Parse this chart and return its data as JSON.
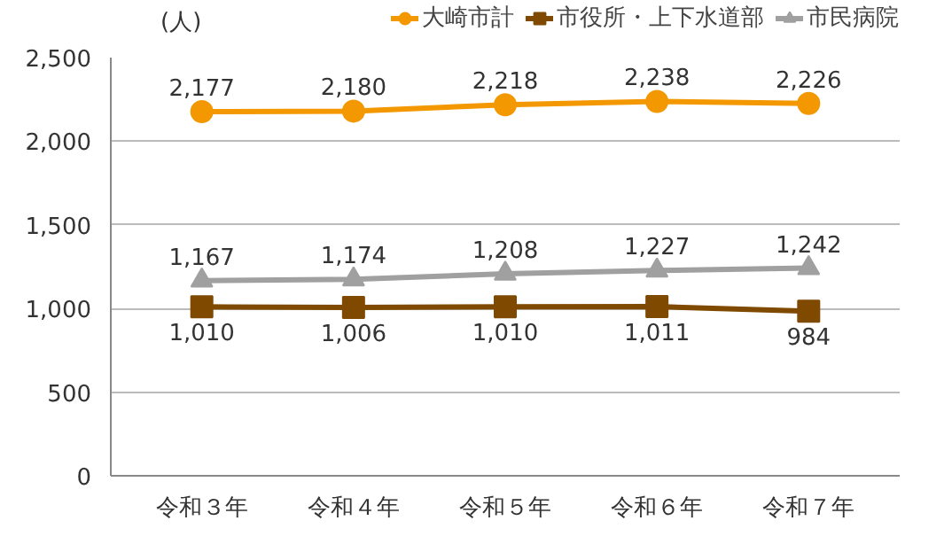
{
  "chart_data": {
    "type": "line",
    "ylabel": "(人)",
    "categories": [
      "令和３年",
      "令和４年",
      "令和５年",
      "令和６年",
      "令和７年"
    ],
    "series": [
      {
        "name": "大崎市計",
        "color": "#f39800",
        "marker": "circle",
        "values": [
          2177,
          2180,
          2218,
          2238,
          2226
        ],
        "value_labels": [
          "2,177",
          "2,180",
          "2,218",
          "2,238",
          "2,226"
        ]
      },
      {
        "name": "市役所・上下水道部",
        "color": "#7f4a00",
        "marker": "square",
        "values": [
          1010,
          1006,
          1010,
          1011,
          984
        ],
        "value_labels": [
          "1,010",
          "1,006",
          "1,010",
          "1,011",
          "984"
        ]
      },
      {
        "name": "市民病院",
        "color": "#a0a0a0",
        "marker": "triangle",
        "values": [
          1167,
          1174,
          1208,
          1227,
          1242
        ],
        "value_labels": [
          "1,167",
          "1,174",
          "1,208",
          "1,227",
          "1,242"
        ]
      }
    ],
    "ylim": [
      0,
      2500
    ],
    "yticks": [
      0,
      {
        "value": 500,
        "label": "500"
      },
      {
        "value": 1000,
        "label": "1,000"
      },
      {
        "value": 1500,
        "label": "1,500"
      },
      {
        "value": 2000,
        "label": "2,000"
      },
      {
        "value": 2500,
        "label": "2,500"
      }
    ],
    "grid": "y",
    "legend": "top",
    "line_style": "solid"
  }
}
